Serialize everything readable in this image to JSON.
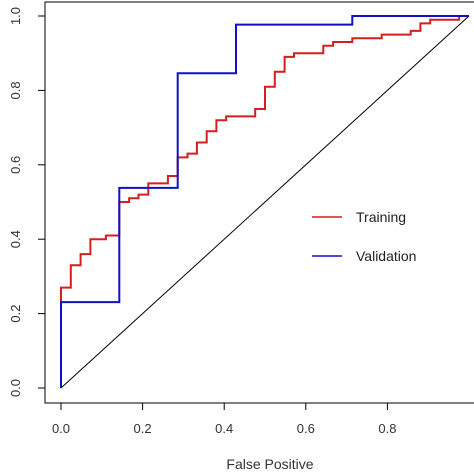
{
  "chart_data": {
    "type": "line",
    "xlabel": "False Positive",
    "ylabel": "",
    "xlim": [
      0,
      1
    ],
    "ylim": [
      0,
      1
    ],
    "x_ticks": [
      "0.0",
      "0.2",
      "0.4",
      "0.6",
      "0.8"
    ],
    "y_ticks": [
      "0.0",
      "0.2",
      "0.4",
      "0.6",
      "0.8",
      "1.0"
    ],
    "grid": false,
    "legend": "center-right",
    "series": [
      {
        "name": "Training",
        "color": "#d21f1f",
        "points": [
          [
            0,
            0
          ],
          [
            0,
            0.27
          ],
          [
            0.024,
            0.27
          ],
          [
            0.024,
            0.33
          ],
          [
            0.048,
            0.33
          ],
          [
            0.048,
            0.36
          ],
          [
            0.072,
            0.36
          ],
          [
            0.072,
            0.4
          ],
          [
            0.11,
            0.4
          ],
          [
            0.11,
            0.41
          ],
          [
            0.143,
            0.41
          ],
          [
            0.143,
            0.5
          ],
          [
            0.167,
            0.5
          ],
          [
            0.167,
            0.51
          ],
          [
            0.19,
            0.51
          ],
          [
            0.19,
            0.52
          ],
          [
            0.214,
            0.52
          ],
          [
            0.214,
            0.55
          ],
          [
            0.262,
            0.55
          ],
          [
            0.262,
            0.57
          ],
          [
            0.286,
            0.57
          ],
          [
            0.286,
            0.62
          ],
          [
            0.31,
            0.62
          ],
          [
            0.31,
            0.63
          ],
          [
            0.333,
            0.63
          ],
          [
            0.333,
            0.66
          ],
          [
            0.357,
            0.66
          ],
          [
            0.357,
            0.69
          ],
          [
            0.381,
            0.69
          ],
          [
            0.381,
            0.72
          ],
          [
            0.405,
            0.72
          ],
          [
            0.405,
            0.73
          ],
          [
            0.476,
            0.73
          ],
          [
            0.476,
            0.75
          ],
          [
            0.5,
            0.75
          ],
          [
            0.5,
            0.81
          ],
          [
            0.524,
            0.81
          ],
          [
            0.524,
            0.85
          ],
          [
            0.548,
            0.85
          ],
          [
            0.548,
            0.89
          ],
          [
            0.571,
            0.89
          ],
          [
            0.571,
            0.9
          ],
          [
            0.643,
            0.9
          ],
          [
            0.643,
            0.92
          ],
          [
            0.667,
            0.92
          ],
          [
            0.667,
            0.93
          ],
          [
            0.714,
            0.93
          ],
          [
            0.714,
            0.94
          ],
          [
            0.786,
            0.94
          ],
          [
            0.786,
            0.95
          ],
          [
            0.857,
            0.95
          ],
          [
            0.857,
            0.96
          ],
          [
            0.881,
            0.96
          ],
          [
            0.881,
            0.98
          ],
          [
            0.905,
            0.98
          ],
          [
            0.905,
            0.99
          ],
          [
            0.976,
            0.99
          ],
          [
            0.976,
            1.0
          ],
          [
            1.0,
            1.0
          ]
        ]
      },
      {
        "name": "Validation",
        "color": "#1010c8",
        "points": [
          [
            0,
            0
          ],
          [
            0,
            0.231
          ],
          [
            0.143,
            0.231
          ],
          [
            0.143,
            0.538
          ],
          [
            0.286,
            0.538
          ],
          [
            0.286,
            0.846
          ],
          [
            0.429,
            0.846
          ],
          [
            0.429,
            0.977
          ],
          [
            0.714,
            0.977
          ],
          [
            0.714,
            1.0
          ],
          [
            1.0,
            1.0
          ]
        ]
      },
      {
        "name": "",
        "color": "#000000",
        "points": [
          [
            0,
            0
          ],
          [
            1,
            1
          ]
        ]
      }
    ]
  }
}
